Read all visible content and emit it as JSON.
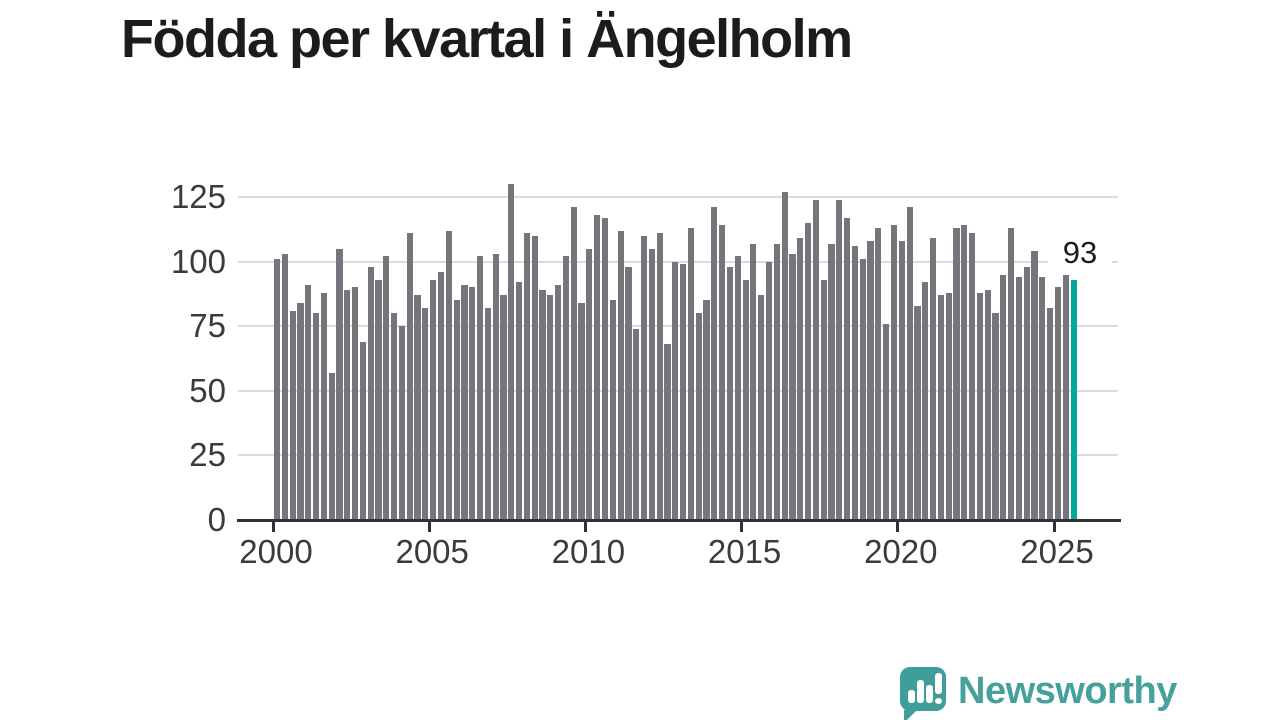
{
  "title": "Födda per kvartal i Ängelholm",
  "chart_data": {
    "type": "bar",
    "title": "Födda per kvartal i Ängelholm",
    "x_range": {
      "start": "2000 Q1",
      "end": "2025 Q3",
      "frequency": "quarterly"
    },
    "values": [
      101,
      103,
      81,
      84,
      91,
      80,
      88,
      57,
      105,
      89,
      90,
      69,
      98,
      93,
      102,
      80,
      75,
      111,
      87,
      82,
      93,
      96,
      112,
      85,
      91,
      90,
      102,
      82,
      103,
      87,
      130,
      92,
      111,
      110,
      89,
      87,
      91,
      102,
      121,
      84,
      105,
      118,
      117,
      85,
      112,
      98,
      74,
      110,
      105,
      111,
      68,
      100,
      99,
      113,
      80,
      85,
      121,
      114,
      98,
      102,
      93,
      107,
      87,
      100,
      107,
      127,
      103,
      109,
      115,
      124,
      93,
      107,
      124,
      117,
      106,
      101,
      108,
      113,
      76,
      114,
      108,
      121,
      83,
      92,
      109,
      87,
      88,
      113,
      114,
      111,
      88,
      89,
      80,
      95,
      113,
      94,
      98,
      104,
      94,
      82,
      90,
      95,
      93
    ],
    "yticks": [
      0,
      25,
      50,
      75,
      100,
      125
    ],
    "xticks": [
      "2000",
      "2005",
      "2010",
      "2015",
      "2020",
      "2025"
    ],
    "ylim": [
      0,
      135
    ],
    "grid": "horizontal",
    "legend": "none",
    "bar_color": "#76757b",
    "highlight": {
      "position": "last",
      "quarter": "2025 Q3",
      "value": 93,
      "label": "93",
      "color": "#00a79b"
    }
  },
  "branding": {
    "name": "Newsworthy",
    "icon": "newsworthy-speech-bubble-bar-chart-icon",
    "color": "#46a19c"
  },
  "colors": {
    "background": "#ffffff",
    "axis": "#323137",
    "grid": "#dcdbdb",
    "tick_label": "#3b3a3e",
    "title": "#1c1b1e",
    "annotation": "#1c1b1e"
  }
}
